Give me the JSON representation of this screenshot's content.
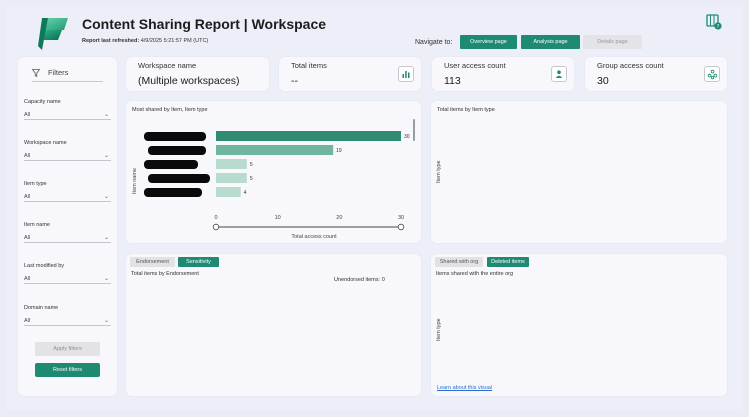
{
  "header": {
    "title": "Content Sharing Report | Workspace",
    "refresh_label": "Report last refreshed:",
    "refresh_value": "4/9/2025 5:21:57 PM (UTC)",
    "nav_label": "Navigate to:",
    "nav_buttons": [
      {
        "label": "Overview page"
      },
      {
        "label": "Analysis page"
      },
      {
        "label": "Details page"
      }
    ]
  },
  "filters": {
    "title": "Filters",
    "groups": [
      {
        "label": "Capacity name",
        "value": "All"
      },
      {
        "label": "Workspace name",
        "value": "All"
      },
      {
        "label": "Item type",
        "value": "All"
      },
      {
        "label": "Item name",
        "value": "All"
      },
      {
        "label": "Last modified by",
        "value": "All"
      },
      {
        "label": "Domain name",
        "value": "All"
      }
    ],
    "apply_label": "Apply filters",
    "reset_label": "Reset filters"
  },
  "kpis": {
    "workspace": {
      "label": "Workspace name",
      "value": "(Multiple workspaces)"
    },
    "total_items": {
      "label": "Total items",
      "value": "--",
      "icon": "bar-chart-icon"
    },
    "user_access": {
      "label": "User access count",
      "value": "113",
      "icon": "user-icon"
    },
    "group_access": {
      "label": "Group access count",
      "value": "30",
      "icon": "group-icon"
    }
  },
  "most_shared": {
    "title": "Most shared by Item, Item type",
    "ylabel": "Item name",
    "xlabel": "Total access count"
  },
  "chart_data": {
    "type": "bar",
    "orientation": "horizontal",
    "title": "Most shared by Item, Item type",
    "ylabel": "Item name",
    "xlabel": "Total access count",
    "categories": [
      "",
      "",
      "",
      "",
      ""
    ],
    "values": [
      30,
      19,
      5,
      5,
      4
    ],
    "value_labels": [
      "30",
      "19",
      "5",
      "5",
      "4"
    ],
    "xlim": [
      0,
      30
    ],
    "xticks": [
      "0",
      "10",
      "20",
      "30"
    ],
    "colors": [
      "#2e8b74",
      "#6fb5a1",
      "#b7dccf",
      "#b7dccf",
      "#b7dccf"
    ]
  },
  "by_type": {
    "title": "Total items by Item type",
    "ylabel": "Item type"
  },
  "endorsement": {
    "tabs": [
      {
        "label": "Endorsement"
      },
      {
        "label": "Sensitivity"
      }
    ],
    "title": "Total items by Endorsement",
    "note": "Unendorsed items: 0"
  },
  "org": {
    "tabs": [
      {
        "label": "Shared with org"
      },
      {
        "label": "Deleted items"
      }
    ],
    "title": "Items shared with the entire org",
    "ylabel": "Item type",
    "link": "Learn about this visual"
  },
  "colors": {
    "accent": "#1f8a72",
    "background": "#eceef8",
    "card": "#f7f7fc"
  }
}
